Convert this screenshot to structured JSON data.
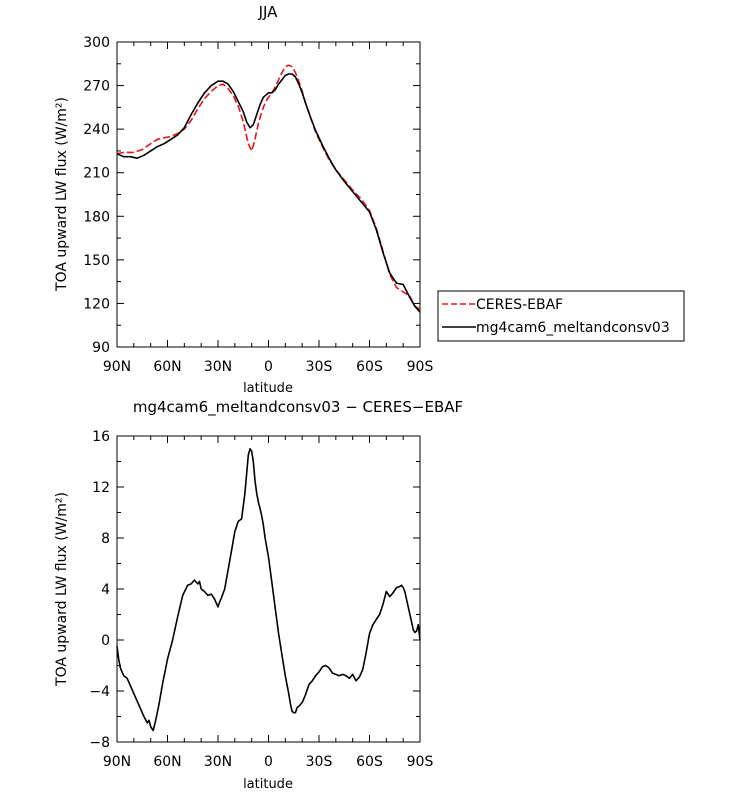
{
  "chart_data": [
    {
      "type": "line",
      "title": "JJA",
      "xlabel": "latitude",
      "ylabel": "TOA upward LW flux (W/m²)",
      "xlim": [
        90,
        -90
      ],
      "ylim": [
        90,
        300
      ],
      "xticks": [
        90,
        60,
        30,
        0,
        -30,
        -60,
        -90
      ],
      "xtick_labels": [
        "90N",
        "60N",
        "30N",
        "0",
        "30S",
        "60S",
        "90S"
      ],
      "yticks": [
        90,
        120,
        150,
        180,
        210,
        240,
        270,
        300
      ],
      "legend": "right",
      "series": [
        {
          "name": "CERES-EBAF",
          "color": "#e8141b",
          "dash": "dashed",
          "x": [
            90,
            86,
            80,
            75,
            70,
            66,
            62,
            58,
            54,
            50,
            46,
            42,
            38,
            34,
            30,
            27,
            24,
            21,
            18,
            15,
            12,
            10,
            8,
            6,
            4,
            2,
            0,
            -2,
            -4,
            -6,
            -8,
            -10,
            -12,
            -14,
            -16,
            -18,
            -20,
            -22,
            -25,
            -28,
            -32,
            -36,
            -40,
            -45,
            -50,
            -55,
            -60,
            -64,
            -68,
            -72,
            -76,
            -80,
            -84,
            -87,
            -90
          ],
          "y": [
            223,
            224,
            224,
            226,
            230,
            233,
            234,
            235,
            237,
            240,
            246,
            254,
            261,
            266,
            270,
            271,
            268,
            263,
            256,
            245,
            230,
            225,
            233,
            244,
            252,
            258,
            262,
            265,
            269,
            274,
            279,
            283,
            284,
            283,
            279,
            273,
            266,
            258,
            248,
            238,
            228,
            219,
            212,
            205,
            198,
            192,
            184,
            172,
            156,
            140,
            131,
            128,
            125,
            118,
            116
          ]
        },
        {
          "name": "mg4cam6_meltandconsv03",
          "color": "#000000",
          "dash": "solid",
          "x": [
            90,
            86,
            82,
            78,
            74,
            70,
            66,
            62,
            58,
            54,
            50,
            46,
            42,
            38,
            34,
            30,
            27,
            24,
            21,
            18,
            15,
            13,
            11,
            9,
            7,
            5,
            3,
            1,
            0,
            -2,
            -4,
            -6,
            -8,
            -10,
            -12,
            -14,
            -16,
            -18,
            -20,
            -22,
            -25,
            -28,
            -32,
            -36,
            -40,
            -45,
            -50,
            -55,
            -60,
            -64,
            -68,
            -72,
            -76,
            -80,
            -84,
            -87,
            -90
          ],
          "y": [
            223,
            221,
            221,
            220,
            222,
            225,
            228,
            230,
            233,
            236,
            241,
            250,
            258,
            265,
            270,
            273,
            273,
            271,
            266,
            259,
            252,
            245,
            241,
            243,
            250,
            257,
            262,
            264,
            265,
            265,
            267,
            271,
            274,
            277,
            278,
            278,
            276,
            271,
            265,
            258,
            248,
            239,
            229,
            220,
            212,
            204,
            197,
            190,
            183,
            171,
            155,
            141,
            134,
            133,
            124,
            118,
            114
          ]
        }
      ]
    },
    {
      "type": "line",
      "title": "mg4cam6_meltandconsv03 − CERES−EBAF",
      "xlabel": "latitude",
      "ylabel": "TOA upward LW flux (W/m²)",
      "xlim": [
        90,
        -90
      ],
      "ylim": [
        -8,
        16
      ],
      "xticks": [
        90,
        60,
        30,
        0,
        -30,
        -60,
        -90
      ],
      "xtick_labels": [
        "90N",
        "60N",
        "30N",
        "0",
        "30S",
        "60S",
        "90S"
      ],
      "yticks": [
        -8,
        -4,
        0,
        4,
        8,
        12,
        16
      ],
      "ytick_labels": [
        "−8",
        "−4",
        "0",
        "4",
        "8",
        "12",
        "16"
      ],
      "series": [
        {
          "color": "#000000",
          "dash": "solid",
          "x": [
            90,
            89,
            88,
            86,
            84,
            82,
            80,
            78,
            76,
            74,
            72,
            71,
            70,
            68.5,
            67,
            65,
            63,
            60,
            57,
            54,
            51,
            48,
            46,
            44,
            42,
            41,
            40,
            38,
            36,
            34,
            32,
            30,
            29,
            28,
            26,
            24,
            22,
            20,
            18,
            16,
            14,
            12,
            11,
            10,
            9,
            8,
            7,
            6,
            5,
            4,
            3,
            2,
            0,
            -2,
            -4,
            -6,
            -8,
            -10,
            -12,
            -13,
            -14,
            -15,
            -16,
            -17,
            -18,
            -20,
            -22,
            -24,
            -26,
            -28,
            -30,
            -32,
            -34,
            -36,
            -38,
            -40,
            -42,
            -44,
            -46,
            -48,
            -50,
            -52,
            -54,
            -56,
            -58,
            -60,
            -62,
            -64,
            -66,
            -68,
            -70,
            -72,
            -74,
            -76,
            -78,
            -79,
            -80,
            -81,
            -82,
            -84,
            -86,
            -87,
            -88,
            -89,
            -90
          ],
          "y": [
            -0.5,
            -1.5,
            -2.2,
            -2.8,
            -3.0,
            -3.6,
            -4.2,
            -4.8,
            -5.4,
            -6.0,
            -6.5,
            -6.3,
            -6.8,
            -7.1,
            -6.3,
            -5.0,
            -3.5,
            -1.5,
            0.0,
            1.8,
            3.5,
            4.3,
            4.4,
            4.7,
            4.4,
            4.6,
            4.0,
            3.8,
            3.5,
            3.6,
            3.2,
            2.6,
            3.0,
            3.3,
            4.0,
            5.5,
            7.0,
            8.5,
            9.3,
            9.5,
            11.5,
            14.5,
            15.0,
            14.8,
            14.0,
            12.5,
            11.5,
            10.8,
            10.3,
            9.7,
            9.0,
            8.0,
            6.5,
            4.5,
            2.5,
            0.5,
            -1.2,
            -2.8,
            -4.2,
            -5.0,
            -5.6,
            -5.7,
            -5.7,
            -5.3,
            -5.2,
            -4.9,
            -4.3,
            -3.5,
            -3.2,
            -2.8,
            -2.5,
            -2.1,
            -2.0,
            -2.2,
            -2.6,
            -2.7,
            -2.8,
            -2.7,
            -2.8,
            -3.0,
            -2.7,
            -3.2,
            -2.9,
            -2.3,
            -1.0,
            0.5,
            1.2,
            1.6,
            2.0,
            2.8,
            3.8,
            3.4,
            3.7,
            4.1,
            4.2,
            4.3,
            4.1,
            3.8,
            3.2,
            2.0,
            0.8,
            0.6,
            0.7,
            1.2,
            0.0
          ]
        }
      ]
    }
  ]
}
